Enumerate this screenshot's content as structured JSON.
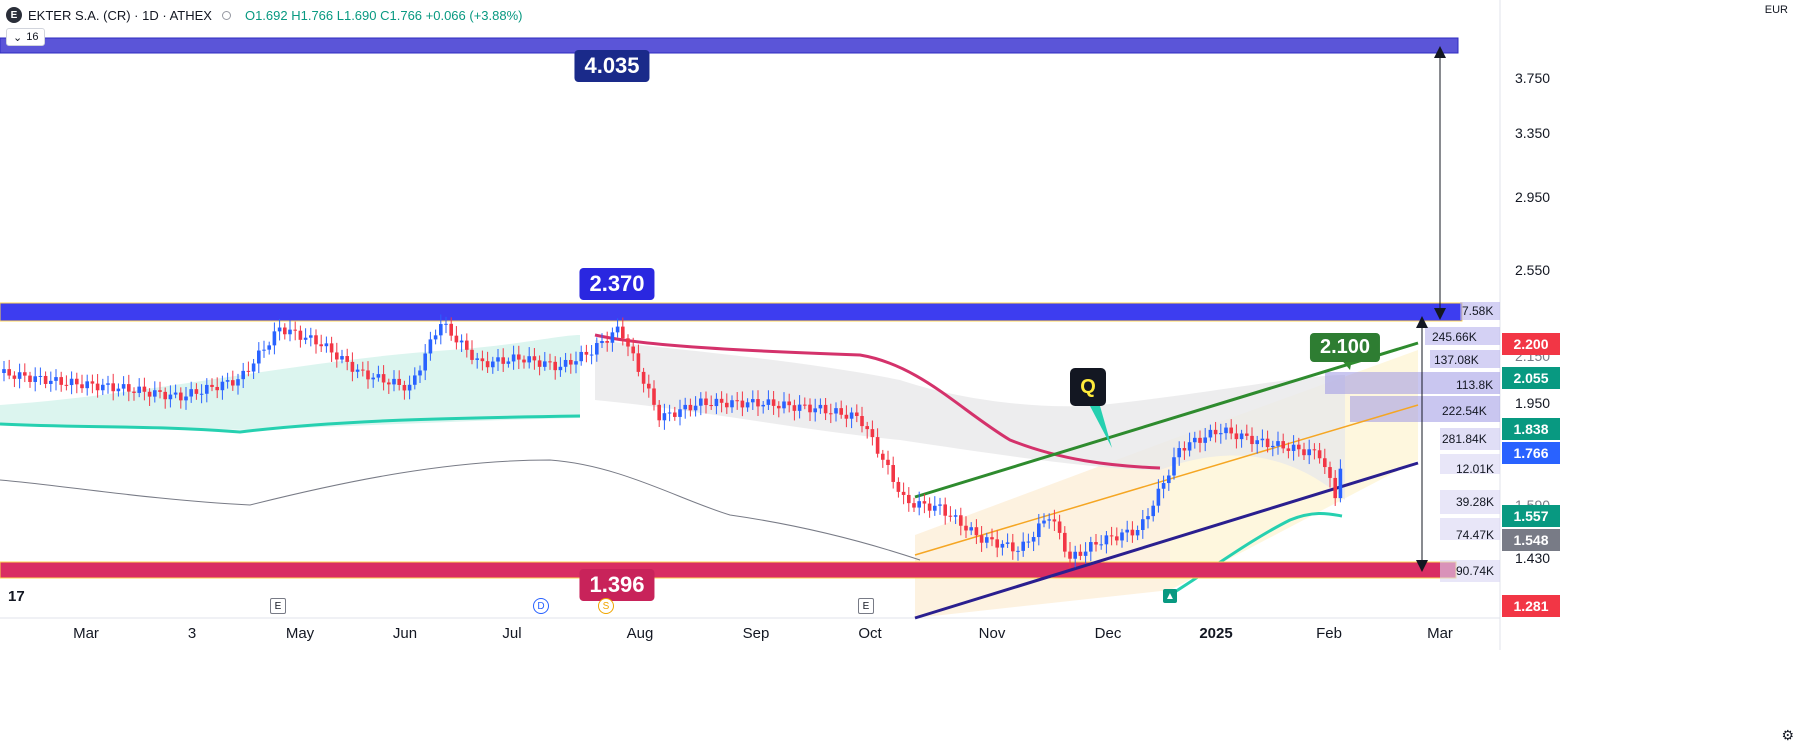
{
  "header": {
    "logo_letter": "E",
    "symbol": "EKTER S.A. (CR) · 1D · ATHEX",
    "ohlc": "O1.692 H1.766 L1.690 C1.766 +0.066 (+3.88%)",
    "indicator_toggle": "16",
    "currency": "EUR"
  },
  "colors": {
    "up": "#2962ff",
    "down": "#f23645",
    "resistance_zone": "#3d3df0",
    "target_zone": "#5b55d8",
    "support_zone": "#d92e63",
    "channel_upper": "#2e8b2e",
    "channel_lower": "#2a1f8f",
    "channel_mid": "#f5a623",
    "teal_band": "#26d0b0",
    "crimson_line": "#d4326b"
  },
  "chart_data": {
    "type": "candlestick",
    "price_axis": {
      "ticks": [
        3.75,
        3.35,
        2.95,
        2.55,
        1.95,
        1.43
      ],
      "tick_labels": [
        "3.750",
        "3.350",
        "2.950",
        "2.550",
        "1.950",
        "1.430"
      ]
    },
    "time_axis": {
      "labels": [
        "Mar",
        "3",
        "May",
        "Jun",
        "Jul",
        "Aug",
        "Sep",
        "Oct",
        "Nov",
        "Dec",
        "2025",
        "Feb",
        "Mar"
      ]
    },
    "last_close": 1.766,
    "levels": {
      "target": "4.035",
      "resistance": "2.370",
      "support": "1.396",
      "channel_target": "2.100"
    },
    "price_badges": [
      {
        "label": "2.200",
        "color": "#f23645"
      },
      {
        "label": "2.055",
        "color": "#089981"
      },
      {
        "label": "1.838",
        "color": "#089981"
      },
      {
        "label": "1.766",
        "color": "#2962ff"
      },
      {
        "label": "1.557",
        "color": "#089981"
      },
      {
        "label": "1.548",
        "color": "#787b86"
      },
      {
        "label": "1.281",
        "color": "#f23645"
      }
    ],
    "volume_profile_labels": [
      "7.58K",
      "245.66K",
      "137.08K",
      "113.8K",
      "222.54K",
      "281.84K",
      "12.01K",
      "39.28K",
      "74.47K",
      "90.74K"
    ],
    "partially_hidden_tick": "2.150",
    "partially_hidden_tick_2": "1.590",
    "pattern_marker": "Q",
    "events": [
      "E",
      "D",
      "S",
      "E"
    ]
  }
}
